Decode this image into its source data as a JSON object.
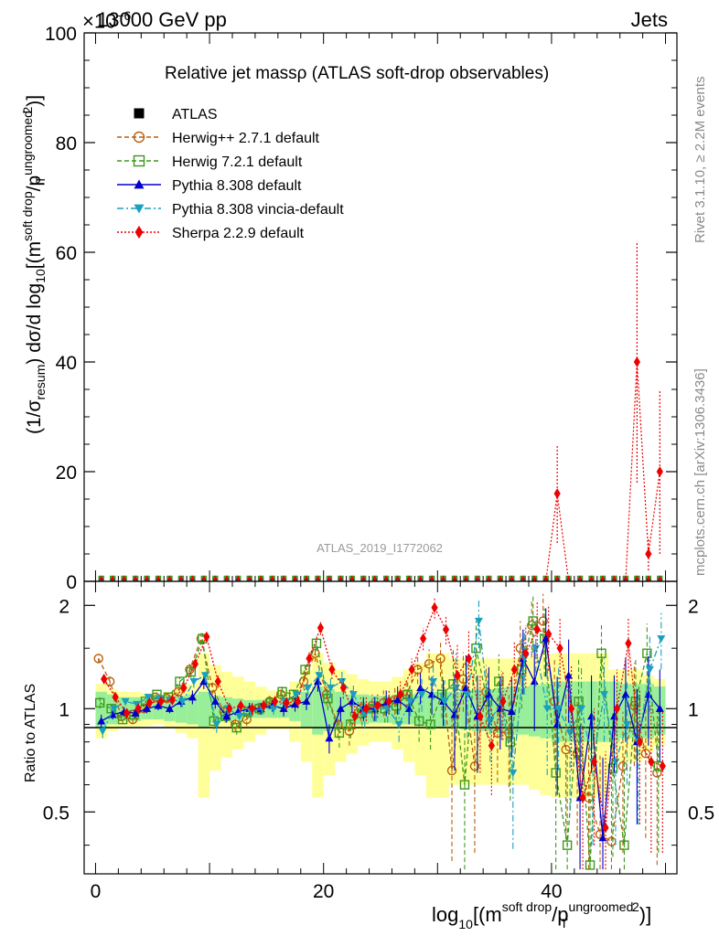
{
  "header": {
    "left": "13000 GeV pp",
    "right": "Jets",
    "multiplier": "×10",
    "multiplier_exp": "−6"
  },
  "side_labels": {
    "rivet": "Rivet 3.1.10, ≥ 2.2M events",
    "mcplots": "mcplots.cern.ch [arXiv:1306.3436]"
  },
  "watermark": "ATLAS_2019_I1772062",
  "chart_data": [
    {
      "type": "line",
      "title": "Relative jet massρ (ATLAS soft-drop observables)",
      "xlabel": "log10[(m^{soft drop}/p_T^{ungroomed})^2]",
      "ylabel": "(1/σresum) dσ/d log10[(m^{soft drop}/p_T^{ungroomed})^2]",
      "xlim": [
        -1,
        51
      ],
      "ylim": [
        0,
        100
      ],
      "yticks": [
        "0",
        "20",
        "40",
        "60",
        "80",
        "100"
      ],
      "xticks": [
        "0",
        "20",
        "40"
      ],
      "legend_position": "top-left",
      "legend": [
        {
          "label": "ATLAS",
          "color": "#000000",
          "marker": "square-filled",
          "dash": "none"
        },
        {
          "label": "Herwig++ 2.7.1 default",
          "color": "#b8600b",
          "marker": "circle-open",
          "dash": "5,3"
        },
        {
          "label": "Herwig 7.2.1 default",
          "color": "#3c9a1c",
          "marker": "square-open",
          "dash": "5,3"
        },
        {
          "label": "Pythia 8.308 default",
          "color": "#0000cc",
          "marker": "triangle-up",
          "dash": "none"
        },
        {
          "label": "Pythia 8.308 vincia-default",
          "color": "#1a9fbf",
          "marker": "triangle-down",
          "dash": "7,3,2,3"
        },
        {
          "label": "Sherpa 2.2.9 default",
          "color": "#ee0000",
          "marker": "diamond",
          "dash": "2,2"
        }
      ],
      "sherpa_spikes": {
        "x": [
          40.5,
          47.5,
          48.5,
          49.5
        ],
        "y": [
          16,
          40,
          5,
          20
        ],
        "err": [
          9,
          22,
          3,
          15
        ]
      }
    },
    {
      "type": "line",
      "ylabel": "Ratio to ATLAS",
      "xlim": [
        -1,
        51
      ],
      "ylim": [
        0.33,
        2.35
      ],
      "yticks": [
        "0.5",
        "1",
        "2"
      ],
      "x": [
        0.5,
        1.5,
        2.5,
        3.5,
        4.5,
        5.5,
        6.5,
        7.5,
        8.5,
        9.5,
        10.5,
        11.5,
        12.5,
        13.5,
        14.5,
        15.5,
        16.5,
        17.5,
        18.5,
        19.5,
        20.5,
        21.5,
        22.5,
        23.5,
        24.5,
        25.5,
        26.5,
        27.5,
        28.5,
        29.5,
        30.5,
        31.5,
        32.5,
        33.5,
        34.5,
        35.5,
        36.5,
        37.5,
        38.5,
        39.5,
        40.5,
        41.5,
        42.5,
        43.5,
        44.5,
        45.5,
        46.5,
        47.5,
        48.5,
        49.5
      ],
      "band_inner": [
        0.12,
        0.1,
        0.08,
        0.08,
        0.07,
        0.07,
        0.08,
        0.09,
        0.1,
        0.12,
        0.09,
        0.08,
        0.07,
        0.06,
        0.06,
        0.06,
        0.06,
        0.08,
        0.12,
        0.16,
        0.14,
        0.12,
        0.1,
        0.1,
        0.09,
        0.09,
        0.1,
        0.1,
        0.11,
        0.12,
        0.12,
        0.12,
        0.13,
        0.14,
        0.14,
        0.15,
        0.16,
        0.16,
        0.17,
        0.18,
        0.2,
        0.2,
        0.2,
        0.2,
        0.2,
        0.2,
        0.18,
        0.18,
        0.18,
        0.16
      ],
      "band_outer": [
        0.18,
        0.14,
        0.12,
        0.12,
        0.11,
        0.1,
        0.12,
        0.15,
        0.18,
        0.45,
        0.34,
        0.28,
        0.24,
        0.2,
        0.16,
        0.13,
        0.13,
        0.2,
        0.3,
        0.45,
        0.36,
        0.3,
        0.26,
        0.22,
        0.2,
        0.2,
        0.24,
        0.3,
        0.36,
        0.45,
        0.45,
        0.4,
        0.4,
        0.4,
        0.4,
        0.4,
        0.4,
        0.4,
        0.42,
        0.44,
        0.45,
        0.45,
        0.45,
        0.45,
        0.45,
        0.3,
        0.3,
        0.3,
        0.25,
        0.22
      ],
      "series": [
        {
          "name": "Herwig++ 2.7.1 default",
          "color": "#b8600b",
          "marker": "circle-open",
          "dash": "5,3",
          "values": [
            1.4,
            1.2,
            0.95,
            0.93,
            1.0,
            1.08,
            1.07,
            1.12,
            1.3,
            1.6,
            1.15,
            0.98,
            0.9,
            0.93,
            1.0,
            1.05,
            1.1,
            1.05,
            1.2,
            1.45,
            1.1,
            0.9,
            0.86,
            1.0,
            1.02,
            1.04,
            1.06,
            1.1,
            1.3,
            1.35,
            1.4,
            0.66,
            1.22,
            0.68,
            1.12,
            0.85,
            0.85,
            1.5,
            1.75,
            1.8,
            1.05,
            0.76,
            0.74,
            0.55,
            0.43,
            0.41,
            0.68,
            1.02,
            0.74,
            0.65
          ],
          "err": [
            0.04,
            0.04,
            0.03,
            0.03,
            0.03,
            0.03,
            0.03,
            0.04,
            0.05,
            0.06,
            0.05,
            0.04,
            0.04,
            0.04,
            0.04,
            0.04,
            0.05,
            0.05,
            0.06,
            0.08,
            0.08,
            0.08,
            0.08,
            0.08,
            0.08,
            0.09,
            0.1,
            0.1,
            0.12,
            0.14,
            0.16,
            0.3,
            0.24,
            0.3,
            0.22,
            0.24,
            0.26,
            0.3,
            0.34,
            0.36,
            0.34,
            0.34,
            0.34,
            0.3,
            0.3,
            0.3,
            0.3,
            0.34,
            0.32,
            0.3
          ]
        },
        {
          "name": "Herwig 7.2.1 default",
          "color": "#3c9a1c",
          "marker": "square-open",
          "dash": "5,3",
          "values": [
            1.04,
            1.0,
            0.93,
            0.96,
            1.05,
            1.1,
            1.08,
            1.2,
            1.28,
            1.6,
            0.92,
            0.95,
            0.88,
            0.98,
            1.0,
            1.04,
            1.12,
            1.1,
            1.3,
            1.55,
            1.07,
            0.85,
            0.9,
            0.97,
            1.0,
            1.0,
            1.02,
            1.1,
            0.92,
            0.9,
            1.1,
            1.18,
            0.6,
            1.5,
            1.05,
            1.2,
            0.8,
            1.3,
            1.8,
            1.6,
            0.65,
            0.4,
            1.05,
            0.35,
            1.45,
            0.67,
            0.4,
            1.05,
            1.45,
            0.68
          ],
          "err": [
            0.04,
            0.03,
            0.03,
            0.03,
            0.03,
            0.03,
            0.03,
            0.04,
            0.05,
            0.06,
            0.05,
            0.04,
            0.04,
            0.04,
            0.04,
            0.04,
            0.05,
            0.05,
            0.06,
            0.08,
            0.08,
            0.08,
            0.08,
            0.08,
            0.08,
            0.09,
            0.1,
            0.1,
            0.12,
            0.14,
            0.16,
            0.3,
            0.28,
            0.3,
            0.22,
            0.24,
            0.26,
            0.3,
            0.34,
            0.36,
            0.34,
            0.34,
            0.34,
            0.3,
            0.3,
            0.3,
            0.3,
            0.34,
            0.32,
            0.3
          ]
        },
        {
          "name": "Pythia 8.308 default",
          "color": "#0000cc",
          "marker": "triangle-up",
          "dash": "none",
          "values": [
            0.92,
            0.96,
            0.98,
            0.97,
            1.0,
            1.02,
            1.0,
            1.05,
            1.08,
            1.2,
            1.05,
            0.95,
            0.98,
            1.0,
            1.0,
            1.02,
            1.0,
            1.03,
            1.05,
            1.2,
            0.82,
            1.0,
            1.05,
            1.0,
            1.0,
            1.04,
            1.06,
            1.0,
            1.15,
            1.1,
            1.05,
            0.96,
            1.15,
            0.95,
            1.1,
            1.0,
            0.98,
            1.4,
            1.2,
            1.6,
            0.9,
            1.25,
            0.55,
            0.95,
            0.42,
            0.95,
            1.1,
            0.8,
            1.1,
            1.0
          ],
          "err": [
            0.04,
            0.03,
            0.03,
            0.03,
            0.03,
            0.03,
            0.03,
            0.04,
            0.05,
            0.06,
            0.05,
            0.04,
            0.04,
            0.04,
            0.04,
            0.04,
            0.05,
            0.05,
            0.06,
            0.08,
            0.08,
            0.08,
            0.08,
            0.08,
            0.08,
            0.09,
            0.1,
            0.1,
            0.12,
            0.14,
            0.16,
            0.3,
            0.28,
            0.3,
            0.22,
            0.24,
            0.26,
            0.3,
            0.34,
            0.36,
            0.34,
            0.34,
            0.34,
            0.3,
            0.3,
            0.3,
            0.3,
            0.34,
            0.32,
            0.3
          ]
        },
        {
          "name": "Pythia 8.308 vincia-default",
          "color": "#1a9fbf",
          "marker": "triangle-down",
          "dash": "7,3,2,3",
          "values": [
            0.86,
            1.0,
            1.05,
            1.03,
            1.08,
            1.07,
            1.06,
            1.05,
            1.2,
            1.25,
            0.9,
            1.0,
            0.95,
            0.98,
            1.0,
            1.0,
            1.05,
            1.1,
            1.15,
            1.25,
            1.15,
            1.2,
            1.1,
            0.96,
            1.0,
            1.0,
            0.9,
            1.05,
            1.1,
            1.2,
            1.05,
            1.15,
            1.1,
            1.8,
            0.92,
            1.05,
            0.65,
            1.4,
            1.5,
            1.0,
            1.0,
            0.85,
            1.0,
            0.7,
            1.1,
            0.7,
            0.9,
            0.8,
            1.3,
            1.6
          ],
          "err": [
            0.04,
            0.03,
            0.03,
            0.03,
            0.03,
            0.03,
            0.03,
            0.04,
            0.05,
            0.06,
            0.05,
            0.04,
            0.04,
            0.04,
            0.04,
            0.04,
            0.05,
            0.05,
            0.06,
            0.08,
            0.08,
            0.08,
            0.08,
            0.08,
            0.08,
            0.09,
            0.1,
            0.1,
            0.12,
            0.14,
            0.16,
            0.3,
            0.28,
            0.3,
            0.22,
            0.24,
            0.26,
            0.3,
            0.34,
            0.36,
            0.34,
            0.34,
            0.34,
            0.3,
            0.3,
            0.3,
            0.3,
            0.34,
            0.32,
            0.3
          ]
        },
        {
          "name": "Sherpa 2.2.9 default",
          "color": "#ee0000",
          "marker": "diamond",
          "dash": "2,2",
          "values": [
            1.22,
            1.08,
            0.97,
            1.0,
            1.04,
            1.05,
            1.06,
            1.15,
            1.35,
            1.62,
            1.2,
            1.0,
            1.02,
            1.0,
            1.02,
            1.05,
            1.04,
            1.05,
            1.4,
            1.72,
            1.3,
            1.15,
            0.95,
            1.0,
            1.02,
            1.05,
            1.1,
            1.3,
            1.6,
            1.97,
            1.7,
            1.25,
            1.4,
            0.95,
            0.78,
            1.05,
            1.3,
            1.45,
            1.7,
            1.65,
            1.5,
            1.0,
            0.55,
            0.7,
            0.45,
            1.0,
            1.55,
            0.8,
            0.7,
            0.68
          ],
          "err": [
            0.04,
            0.03,
            0.03,
            0.03,
            0.03,
            0.03,
            0.03,
            0.04,
            0.05,
            0.06,
            0.05,
            0.04,
            0.04,
            0.04,
            0.04,
            0.04,
            0.05,
            0.05,
            0.06,
            0.08,
            0.08,
            0.08,
            0.08,
            0.08,
            0.08,
            0.09,
            0.1,
            0.1,
            0.12,
            0.14,
            0.16,
            0.3,
            0.28,
            0.3,
            0.22,
            0.24,
            0.26,
            0.3,
            0.34,
            0.36,
            0.34,
            0.34,
            0.34,
            0.3,
            0.3,
            0.3,
            0.3,
            0.34,
            0.32,
            0.3
          ]
        }
      ]
    }
  ]
}
